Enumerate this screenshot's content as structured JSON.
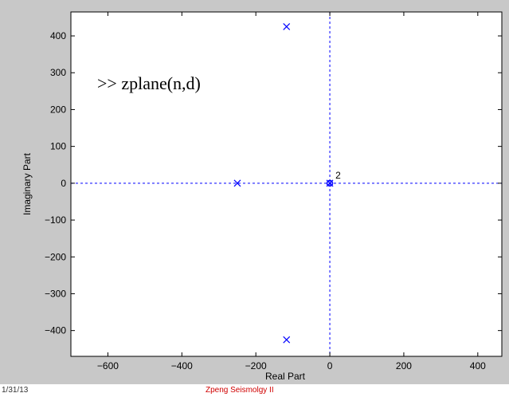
{
  "chart_data": {
    "type": "scatter",
    "title": "",
    "xlabel": "Real Part",
    "ylabel": "Imaginary Part",
    "xlim": [
      -700,
      465
    ],
    "ylim": [
      -470,
      465
    ],
    "x_ticks": [
      -600,
      -400,
      -200,
      0,
      200,
      400
    ],
    "y_ticks": [
      400,
      300,
      200,
      100,
      0,
      -100,
      -200,
      -300,
      -400
    ],
    "grid": false,
    "series": [
      {
        "marker": "x",
        "color": "#0000ff",
        "points": [
          {
            "x": -117,
            "y": 425
          },
          {
            "x": -117,
            "y": -425
          },
          {
            "x": -250,
            "y": 0
          },
          {
            "x": 0,
            "y": 0
          }
        ]
      },
      {
        "marker": "o",
        "color": "#0000ff",
        "points": [
          {
            "x": 0,
            "y": 0
          }
        ]
      }
    ],
    "multiplicity_label": "2",
    "annotation": ">> zplane(n,d)",
    "reference_lines": {
      "x": 0,
      "y": 0,
      "color": "#0000ff",
      "style": "dashed"
    }
  },
  "footer": {
    "date": "1/31/13",
    "credit": "Zpeng Seismolgy II",
    "credit_color": "#d00000"
  },
  "colors": {
    "figure_bg": "#c8c8c8",
    "plot_bg": "#ffffff"
  }
}
